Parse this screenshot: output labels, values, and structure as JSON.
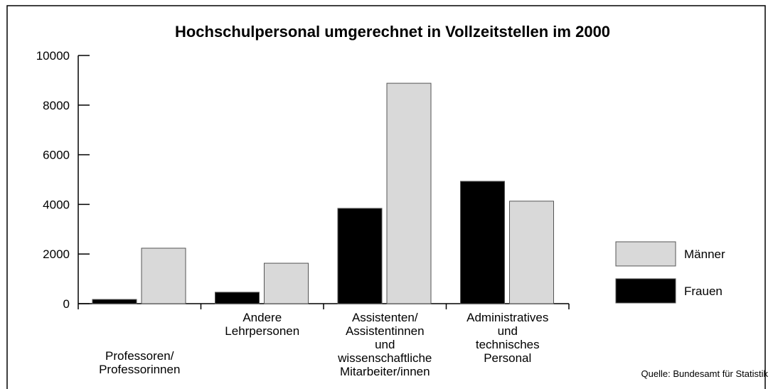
{
  "chart_data": {
    "type": "bar",
    "title": "Hochschulpersonal umgerechnet in Vollzeitstellen im 2000",
    "categories": [
      "Professoren/\nProfessorinnen",
      "Andere\nLehrpersonen",
      "Assistenten/\nAssistentinnen\nund\nwissenschaftliche\nMitarbeiter/innen",
      "Administratives\nund\ntechnisches\nPersonal"
    ],
    "series": [
      {
        "name": "Frauen",
        "color": "#000000",
        "values": [
          170,
          460,
          3840,
          4930
        ]
      },
      {
        "name": "Männer",
        "color": "#d9d9d9",
        "values": [
          2235,
          1630,
          8880,
          4130
        ]
      }
    ],
    "ylim": [
      0,
      10000
    ],
    "yticks": [
      0,
      2000,
      4000,
      6000,
      8000,
      10000
    ],
    "legend": "right",
    "source": "Quelle: Bundesamt für Statistik"
  }
}
